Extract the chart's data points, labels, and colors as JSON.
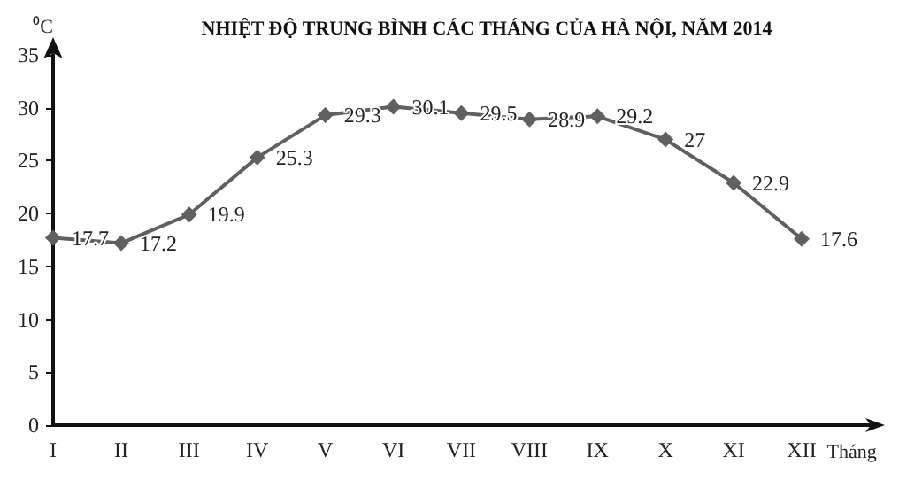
{
  "chart_data": {
    "type": "line",
    "title": "NHIỆT ĐỘ TRUNG BÌNH CÁC THÁNG CỦA HÀ NỘI, NĂM 2014",
    "ylabel": "⁰C",
    "xlabel": "Tháng",
    "categories": [
      "I",
      "II",
      "III",
      "IV",
      "V",
      "VI",
      "VII",
      "VIII",
      "IX",
      "X",
      "XI",
      "XII"
    ],
    "series": [
      {
        "color": "#606060",
        "values": [
          17.7,
          17.2,
          19.9,
          25.3,
          29.3,
          30.1,
          29.5,
          28.9,
          29.2,
          27,
          22.9,
          17.6
        ]
      }
    ],
    "ylim": [
      0,
      35
    ],
    "yticks": [
      0,
      5,
      10,
      15,
      20,
      25,
      30,
      35
    ],
    "grid": false,
    "marker": "diamond",
    "line_style": "solid",
    "data_labels": true
  }
}
